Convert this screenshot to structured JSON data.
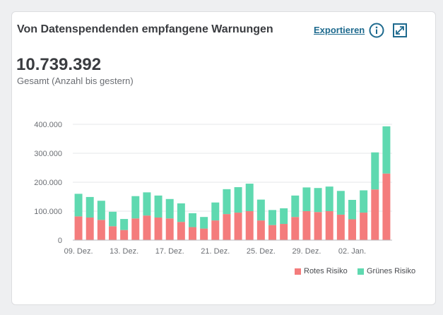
{
  "header": {
    "title": "Von Datenspendenden empfangene Warnungen",
    "export_label": "Exportieren",
    "info_icon": "info-icon",
    "expand_icon": "expand-icon"
  },
  "summary": {
    "total": "10.739.392",
    "total_label": "Gesamt (Anzahl bis gestern)"
  },
  "colors": {
    "red": "#f47c7c",
    "green": "#5fd9b0"
  },
  "legend": {
    "red_label": "Rotes Risiko",
    "green_label": "Grünes Risiko"
  },
  "chart_data": {
    "type": "bar",
    "stacked": true,
    "y_ticks": [
      "400.000",
      "300.000",
      "200.000",
      "100.000",
      "0"
    ],
    "ylim": [
      0,
      400000
    ],
    "x_tick_labels": [
      {
        "index": 0,
        "label": "09. Dez."
      },
      {
        "index": 4,
        "label": "13. Dez."
      },
      {
        "index": 8,
        "label": "17. Dez."
      },
      {
        "index": 12,
        "label": "21. Dez."
      },
      {
        "index": 16,
        "label": "25. Dez."
      },
      {
        "index": 20,
        "label": "29. Dez."
      },
      {
        "index": 24,
        "label": "02. Jan."
      }
    ],
    "grid": true,
    "legend_position": "bottom-right",
    "series": [
      {
        "name": "Rotes Risiko",
        "values": [
          82000,
          78000,
          70000,
          48000,
          35000,
          75000,
          85000,
          78000,
          75000,
          63000,
          45000,
          40000,
          68000,
          90000,
          95000,
          100000,
          68000,
          52000,
          56000,
          80000,
          100000,
          97000,
          100000,
          88000,
          72000,
          95000,
          175000,
          230000
        ]
      },
      {
        "name": "Grünes Risiko",
        "values": [
          78000,
          71000,
          66000,
          50000,
          38000,
          77000,
          80000,
          76000,
          67000,
          64000,
          48000,
          40000,
          62000,
          86000,
          88000,
          95000,
          72000,
          52000,
          54000,
          74000,
          82000,
          83000,
          85000,
          82000,
          67000,
          77000,
          128000,
          163000
        ]
      }
    ]
  }
}
